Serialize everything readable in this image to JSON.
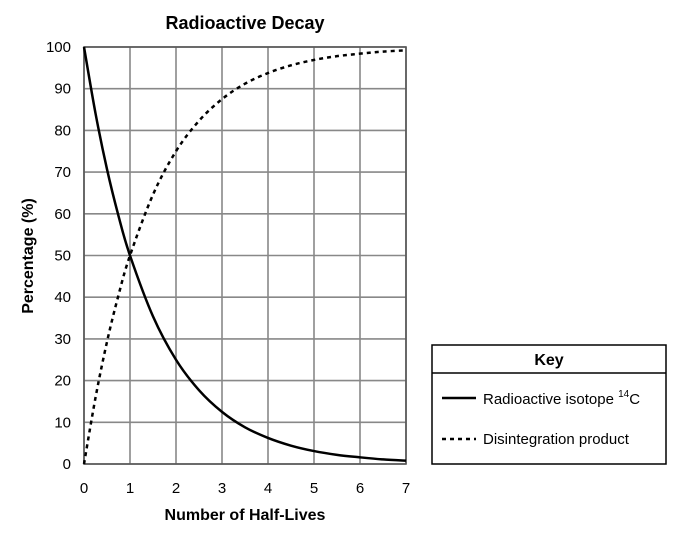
{
  "chart_data": {
    "type": "line",
    "title": "Radioactive Decay",
    "xlabel": "Number of Half-Lives",
    "ylabel": "Percentage (%)",
    "xlim": [
      0,
      7
    ],
    "ylim": [
      0,
      100
    ],
    "x_ticks": [
      "0",
      "1",
      "2",
      "3",
      "4",
      "5",
      "6",
      "7"
    ],
    "y_ticks": [
      "0",
      "10",
      "20",
      "30",
      "40",
      "50",
      "60",
      "70",
      "80",
      "90",
      "100"
    ],
    "grid": true,
    "legend": {
      "title": "Key",
      "placement": "right",
      "entries": [
        {
          "label": "Radioactive isotope ",
          "sup": "14",
          "suffix": "C",
          "style": "solid"
        },
        {
          "label": "Disintegration product",
          "style": "dashed"
        }
      ]
    },
    "series": [
      {
        "name": "Radioactive isotope 14C",
        "style": "solid",
        "color": "#000000",
        "x": [
          0,
          0.25,
          0.5,
          0.75,
          1,
          1.5,
          2,
          2.5,
          3,
          3.5,
          4,
          4.5,
          5,
          5.5,
          6,
          6.5,
          7
        ],
        "y": [
          100,
          84.1,
          70.7,
          59.5,
          50,
          35.4,
          25,
          17.7,
          12.5,
          8.8,
          6.25,
          4.4,
          3.1,
          2.2,
          1.6,
          1.1,
          0.8
        ]
      },
      {
        "name": "Disintegration product",
        "style": "dashed",
        "color": "#000000",
        "x": [
          0,
          0.25,
          0.5,
          0.75,
          1,
          1.5,
          2,
          2.5,
          3,
          3.5,
          4,
          4.5,
          5,
          5.5,
          6,
          6.5,
          7
        ],
        "y": [
          0,
          15.9,
          29.3,
          40.5,
          50,
          64.6,
          75,
          82.3,
          87.5,
          91.2,
          93.75,
          95.6,
          96.9,
          97.8,
          98.4,
          98.9,
          99.2
        ]
      }
    ]
  }
}
